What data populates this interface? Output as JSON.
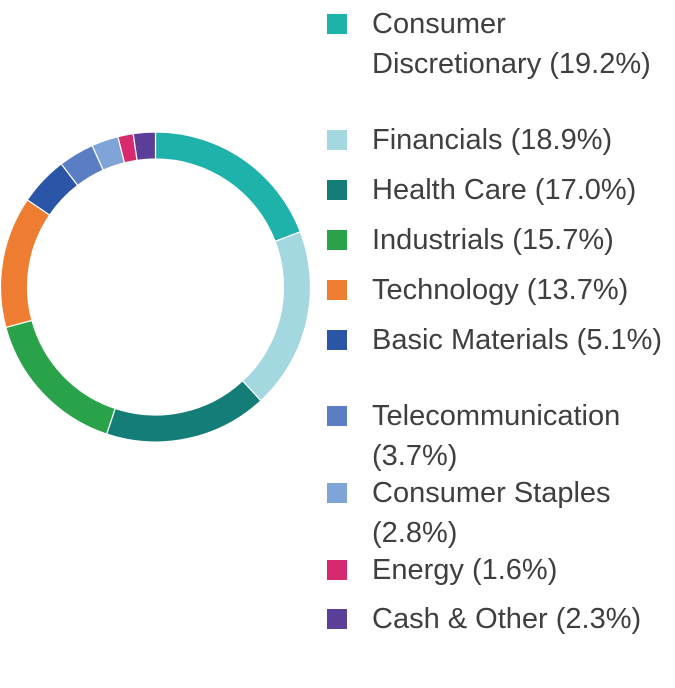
{
  "chart_data": {
    "type": "pie",
    "title": "",
    "slices": [
      {
        "label": "Consumer Discretionary",
        "pct_label": "(19.2%)",
        "value": 19.2,
        "color": "#1fb2aa"
      },
      {
        "label": "Financials",
        "pct_label": "(18.9%)",
        "value": 18.9,
        "color": "#a3d8e0"
      },
      {
        "label": "Health Care",
        "pct_label": "(17.0%)",
        "value": 17.0,
        "color": "#147d78"
      },
      {
        "label": "Industrials",
        "pct_label": "(15.7%)",
        "value": 15.7,
        "color": "#2aa24a"
      },
      {
        "label": "Technology",
        "pct_label": "(13.7%)",
        "value": 13.7,
        "color": "#ee7d31"
      },
      {
        "label": "Basic Materials",
        "pct_label": "(5.1%)",
        "value": 5.1,
        "color": "#2b55a6"
      },
      {
        "label": "Telecommunication",
        "pct_label": "(3.7%)",
        "value": 3.7,
        "color": "#5b7dc3"
      },
      {
        "label": "Consumer Staples",
        "pct_label": "(2.8%)",
        "value": 2.8,
        "color": "#7ea4d8"
      },
      {
        "label": "Energy",
        "pct_label": "(1.6%)",
        "value": 1.6,
        "color": "#d6296e"
      },
      {
        "label": "Cash & Other",
        "pct_label": "(2.3%)",
        "value": 2.3,
        "color": "#5a3e98"
      }
    ],
    "legend_placement": "right",
    "hole": "white center"
  }
}
